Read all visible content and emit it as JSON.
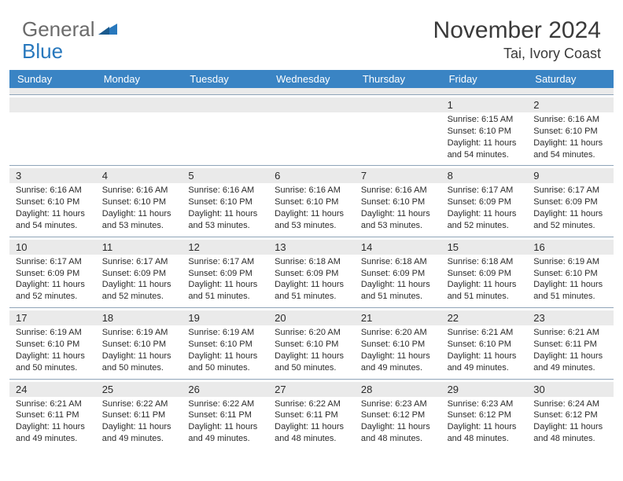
{
  "logo": {
    "text1": "General",
    "text2": "Blue"
  },
  "title": "November 2024",
  "location": "Tai, Ivory Coast",
  "colors": {
    "header_bg": "#3a84c4",
    "header_text": "#ffffff",
    "daynum_bg": "#eaeaea",
    "border": "#8fa4b8",
    "text": "#2b2b2b",
    "logo_gray": "#6b6b6b",
    "logo_blue": "#2878bd"
  },
  "day_headers": [
    "Sunday",
    "Monday",
    "Tuesday",
    "Wednesday",
    "Thursday",
    "Friday",
    "Saturday"
  ],
  "weeks": [
    [
      {
        "num": "",
        "sunrise": "",
        "sunset": "",
        "daylight": ""
      },
      {
        "num": "",
        "sunrise": "",
        "sunset": "",
        "daylight": ""
      },
      {
        "num": "",
        "sunrise": "",
        "sunset": "",
        "daylight": ""
      },
      {
        "num": "",
        "sunrise": "",
        "sunset": "",
        "daylight": ""
      },
      {
        "num": "",
        "sunrise": "",
        "sunset": "",
        "daylight": ""
      },
      {
        "num": "1",
        "sunrise": "Sunrise: 6:15 AM",
        "sunset": "Sunset: 6:10 PM",
        "daylight": "Daylight: 11 hours and 54 minutes."
      },
      {
        "num": "2",
        "sunrise": "Sunrise: 6:16 AM",
        "sunset": "Sunset: 6:10 PM",
        "daylight": "Daylight: 11 hours and 54 minutes."
      }
    ],
    [
      {
        "num": "3",
        "sunrise": "Sunrise: 6:16 AM",
        "sunset": "Sunset: 6:10 PM",
        "daylight": "Daylight: 11 hours and 54 minutes."
      },
      {
        "num": "4",
        "sunrise": "Sunrise: 6:16 AM",
        "sunset": "Sunset: 6:10 PM",
        "daylight": "Daylight: 11 hours and 53 minutes."
      },
      {
        "num": "5",
        "sunrise": "Sunrise: 6:16 AM",
        "sunset": "Sunset: 6:10 PM",
        "daylight": "Daylight: 11 hours and 53 minutes."
      },
      {
        "num": "6",
        "sunrise": "Sunrise: 6:16 AM",
        "sunset": "Sunset: 6:10 PM",
        "daylight": "Daylight: 11 hours and 53 minutes."
      },
      {
        "num": "7",
        "sunrise": "Sunrise: 6:16 AM",
        "sunset": "Sunset: 6:10 PM",
        "daylight": "Daylight: 11 hours and 53 minutes."
      },
      {
        "num": "8",
        "sunrise": "Sunrise: 6:17 AM",
        "sunset": "Sunset: 6:09 PM",
        "daylight": "Daylight: 11 hours and 52 minutes."
      },
      {
        "num": "9",
        "sunrise": "Sunrise: 6:17 AM",
        "sunset": "Sunset: 6:09 PM",
        "daylight": "Daylight: 11 hours and 52 minutes."
      }
    ],
    [
      {
        "num": "10",
        "sunrise": "Sunrise: 6:17 AM",
        "sunset": "Sunset: 6:09 PM",
        "daylight": "Daylight: 11 hours and 52 minutes."
      },
      {
        "num": "11",
        "sunrise": "Sunrise: 6:17 AM",
        "sunset": "Sunset: 6:09 PM",
        "daylight": "Daylight: 11 hours and 52 minutes."
      },
      {
        "num": "12",
        "sunrise": "Sunrise: 6:17 AM",
        "sunset": "Sunset: 6:09 PM",
        "daylight": "Daylight: 11 hours and 51 minutes."
      },
      {
        "num": "13",
        "sunrise": "Sunrise: 6:18 AM",
        "sunset": "Sunset: 6:09 PM",
        "daylight": "Daylight: 11 hours and 51 minutes."
      },
      {
        "num": "14",
        "sunrise": "Sunrise: 6:18 AM",
        "sunset": "Sunset: 6:09 PM",
        "daylight": "Daylight: 11 hours and 51 minutes."
      },
      {
        "num": "15",
        "sunrise": "Sunrise: 6:18 AM",
        "sunset": "Sunset: 6:09 PM",
        "daylight": "Daylight: 11 hours and 51 minutes."
      },
      {
        "num": "16",
        "sunrise": "Sunrise: 6:19 AM",
        "sunset": "Sunset: 6:10 PM",
        "daylight": "Daylight: 11 hours and 51 minutes."
      }
    ],
    [
      {
        "num": "17",
        "sunrise": "Sunrise: 6:19 AM",
        "sunset": "Sunset: 6:10 PM",
        "daylight": "Daylight: 11 hours and 50 minutes."
      },
      {
        "num": "18",
        "sunrise": "Sunrise: 6:19 AM",
        "sunset": "Sunset: 6:10 PM",
        "daylight": "Daylight: 11 hours and 50 minutes."
      },
      {
        "num": "19",
        "sunrise": "Sunrise: 6:19 AM",
        "sunset": "Sunset: 6:10 PM",
        "daylight": "Daylight: 11 hours and 50 minutes."
      },
      {
        "num": "20",
        "sunrise": "Sunrise: 6:20 AM",
        "sunset": "Sunset: 6:10 PM",
        "daylight": "Daylight: 11 hours and 50 minutes."
      },
      {
        "num": "21",
        "sunrise": "Sunrise: 6:20 AM",
        "sunset": "Sunset: 6:10 PM",
        "daylight": "Daylight: 11 hours and 49 minutes."
      },
      {
        "num": "22",
        "sunrise": "Sunrise: 6:21 AM",
        "sunset": "Sunset: 6:10 PM",
        "daylight": "Daylight: 11 hours and 49 minutes."
      },
      {
        "num": "23",
        "sunrise": "Sunrise: 6:21 AM",
        "sunset": "Sunset: 6:11 PM",
        "daylight": "Daylight: 11 hours and 49 minutes."
      }
    ],
    [
      {
        "num": "24",
        "sunrise": "Sunrise: 6:21 AM",
        "sunset": "Sunset: 6:11 PM",
        "daylight": "Daylight: 11 hours and 49 minutes."
      },
      {
        "num": "25",
        "sunrise": "Sunrise: 6:22 AM",
        "sunset": "Sunset: 6:11 PM",
        "daylight": "Daylight: 11 hours and 49 minutes."
      },
      {
        "num": "26",
        "sunrise": "Sunrise: 6:22 AM",
        "sunset": "Sunset: 6:11 PM",
        "daylight": "Daylight: 11 hours and 49 minutes."
      },
      {
        "num": "27",
        "sunrise": "Sunrise: 6:22 AM",
        "sunset": "Sunset: 6:11 PM",
        "daylight": "Daylight: 11 hours and 48 minutes."
      },
      {
        "num": "28",
        "sunrise": "Sunrise: 6:23 AM",
        "sunset": "Sunset: 6:12 PM",
        "daylight": "Daylight: 11 hours and 48 minutes."
      },
      {
        "num": "29",
        "sunrise": "Sunrise: 6:23 AM",
        "sunset": "Sunset: 6:12 PM",
        "daylight": "Daylight: 11 hours and 48 minutes."
      },
      {
        "num": "30",
        "sunrise": "Sunrise: 6:24 AM",
        "sunset": "Sunset: 6:12 PM",
        "daylight": "Daylight: 11 hours and 48 minutes."
      }
    ]
  ]
}
